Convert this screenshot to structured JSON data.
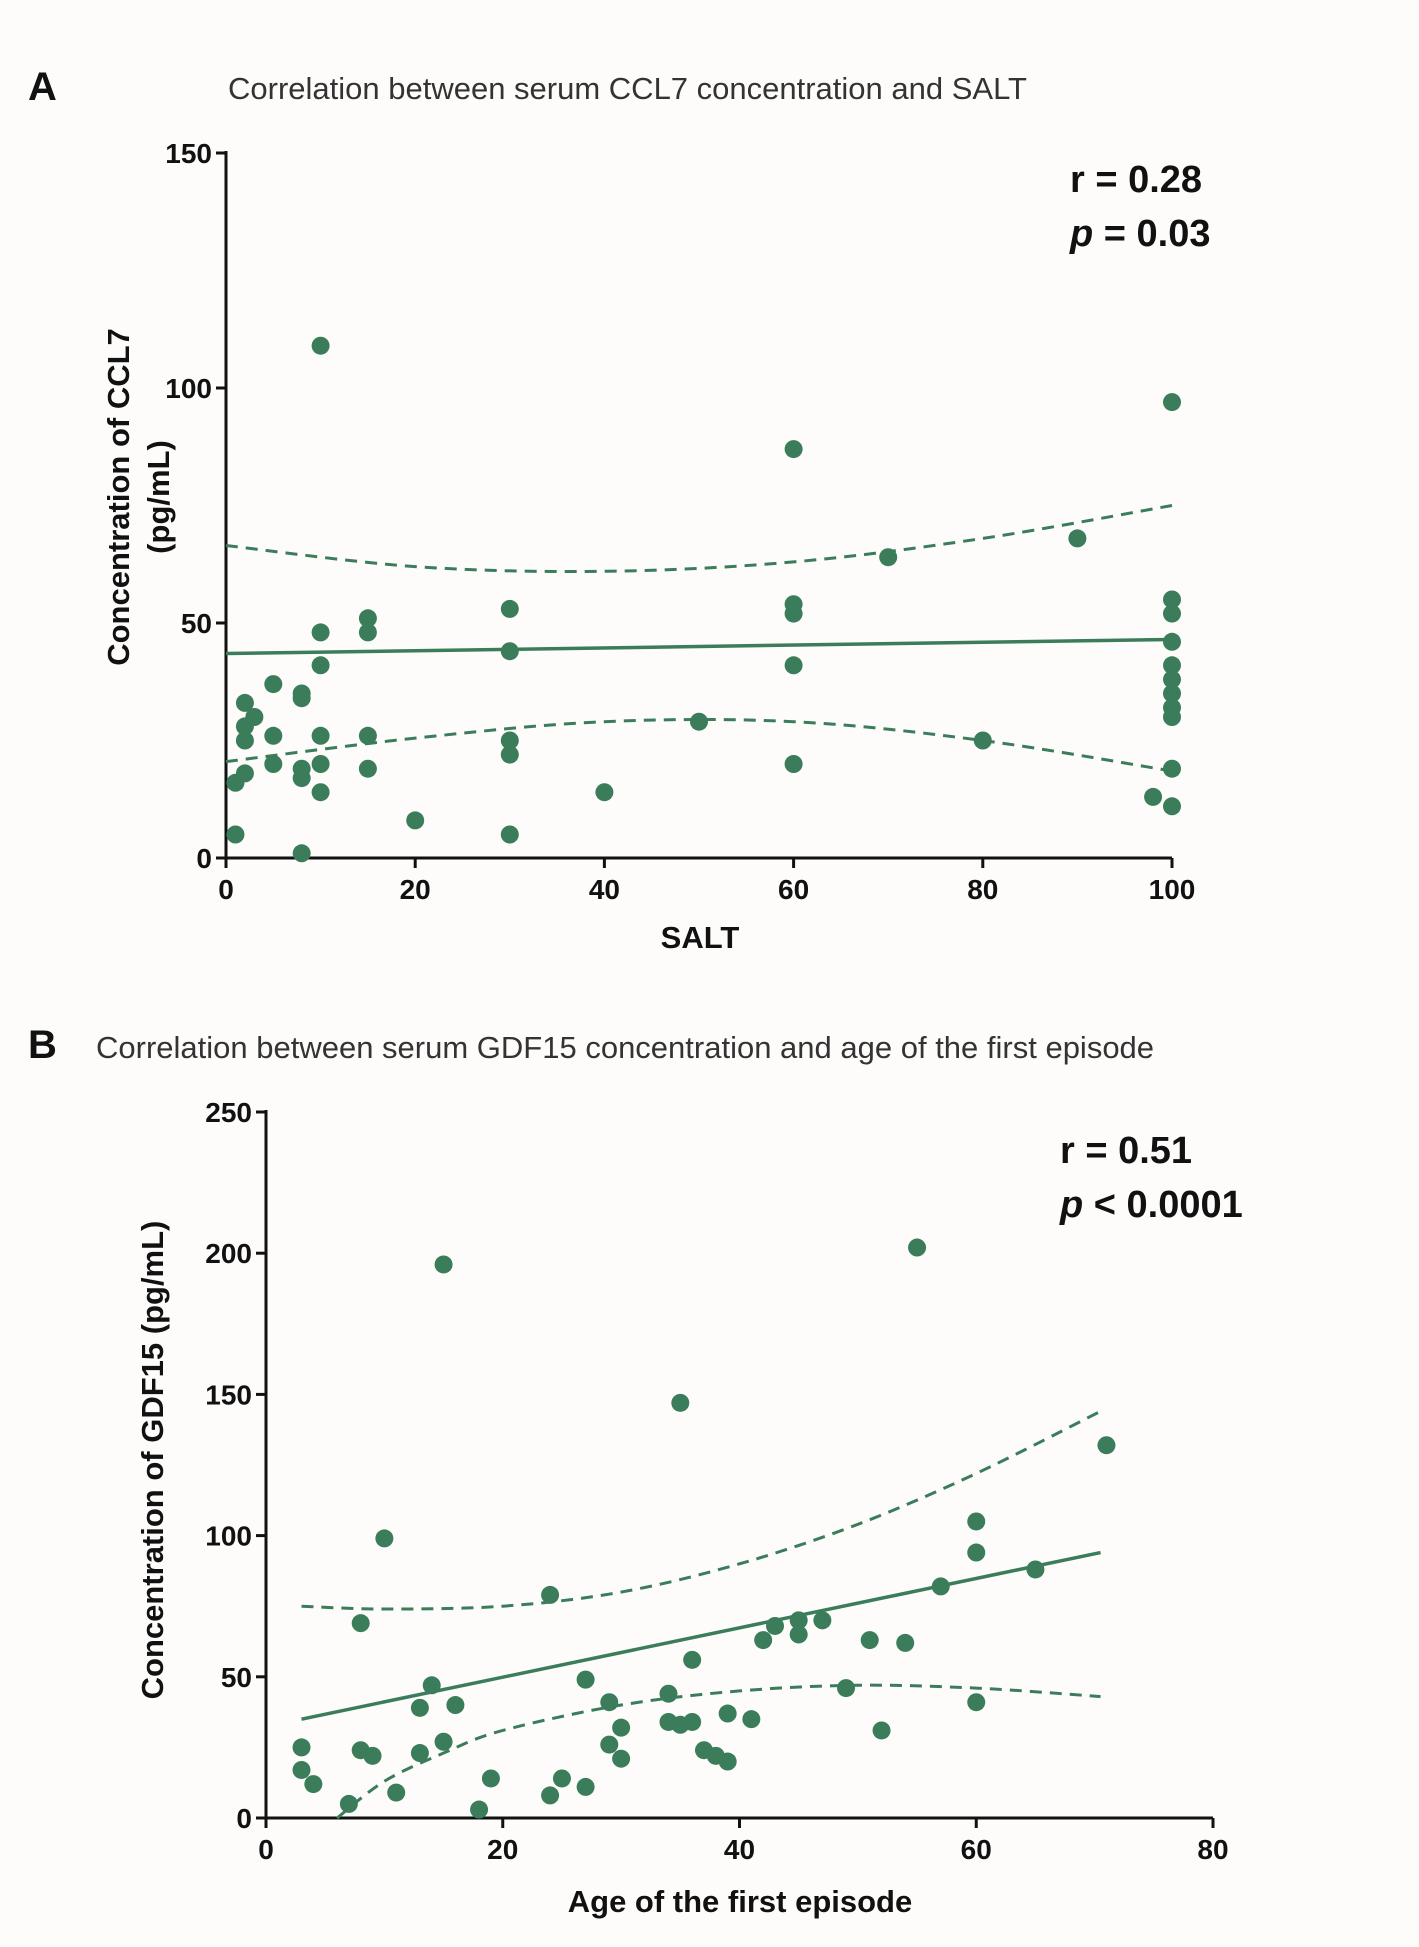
{
  "colors": {
    "point": "#3b7d5a",
    "fit": "#3b7d5a",
    "axis": "#111111",
    "background": "#fdfcfb"
  },
  "chart_data": [
    {
      "panel": "A",
      "type": "scatter",
      "title": "Correlation between serum CCL7 concentration and SALT",
      "xlabel": "SALT",
      "ylabel_lines": [
        "Concentration of CCL7",
        "(pg/mL)"
      ],
      "xlim": [
        0,
        100
      ],
      "ylim": [
        0,
        150
      ],
      "xticks": [
        0,
        20,
        40,
        60,
        80,
        100
      ],
      "yticks": [
        0,
        50,
        100,
        150
      ],
      "stats": {
        "r_text": "r = 0.28",
        "p_symbol": "p",
        "p_rest": " = 0.03"
      },
      "fit": {
        "x": [
          0,
          100
        ],
        "y": [
          43.5,
          46.5
        ]
      },
      "ci_upper": {
        "x": [
          0,
          20,
          40,
          60,
          80,
          100
        ],
        "y": [
          66.5,
          62,
          61,
          63,
          68,
          75
        ]
      },
      "ci_lower": {
        "x": [
          0,
          20,
          40,
          60,
          80,
          100
        ],
        "y": [
          20.5,
          25.5,
          29,
          29,
          25,
          18.5
        ]
      },
      "points": [
        [
          1,
          5
        ],
        [
          1,
          16
        ],
        [
          2,
          18
        ],
        [
          2,
          25
        ],
        [
          2,
          28
        ],
        [
          2,
          33
        ],
        [
          3,
          30
        ],
        [
          5,
          37
        ],
        [
          5,
          20
        ],
        [
          5,
          26
        ],
        [
          8,
          35
        ],
        [
          8,
          34
        ],
        [
          8,
          19
        ],
        [
          8,
          17
        ],
        [
          8,
          1
        ],
        [
          10,
          109
        ],
        [
          10,
          48
        ],
        [
          10,
          41
        ],
        [
          10,
          26
        ],
        [
          10,
          20
        ],
        [
          10,
          14
        ],
        [
          15,
          51
        ],
        [
          15,
          48
        ],
        [
          15,
          26
        ],
        [
          15,
          19
        ],
        [
          20,
          8
        ],
        [
          30,
          53
        ],
        [
          30,
          44
        ],
        [
          30,
          25
        ],
        [
          30,
          22
        ],
        [
          30,
          5
        ],
        [
          40,
          14
        ],
        [
          50,
          29
        ],
        [
          60,
          87
        ],
        [
          60,
          54
        ],
        [
          60,
          52
        ],
        [
          60,
          41
        ],
        [
          60,
          20
        ],
        [
          70,
          64
        ],
        [
          80,
          25
        ],
        [
          90,
          68
        ],
        [
          98,
          13
        ],
        [
          100,
          97
        ],
        [
          100,
          55
        ],
        [
          100,
          52
        ],
        [
          100,
          46
        ],
        [
          100,
          41
        ],
        [
          100,
          38
        ],
        [
          100,
          35
        ],
        [
          100,
          32
        ],
        [
          100,
          30
        ],
        [
          100,
          19
        ],
        [
          100,
          11
        ]
      ]
    },
    {
      "panel": "B",
      "type": "scatter",
      "title": "Correlation between serum GDF15 concentration and age of the first episode",
      "xlabel": "Age of the first episode",
      "ylabel_lines": [
        "Concentration of GDF15 (pg/mL)"
      ],
      "xlim": [
        0,
        80
      ],
      "ylim": [
        0,
        250
      ],
      "xticks": [
        0,
        20,
        40,
        60,
        80
      ],
      "yticks": [
        0,
        50,
        100,
        150,
        200,
        250
      ],
      "stats": {
        "r_text": "r = 0.51",
        "p_symbol": "p",
        "p_rest": " < 0.0001"
      },
      "fit": {
        "x": [
          3,
          70.5
        ],
        "y": [
          35,
          94
        ]
      },
      "ci_upper": {
        "x": [
          3,
          10,
          20,
          30,
          40,
          50,
          60,
          70.5
        ],
        "y": [
          75,
          74,
          75,
          80,
          90,
          104,
          122,
          144
        ]
      },
      "ci_lower": {
        "x": [
          6,
          10,
          15,
          20,
          30,
          40,
          50,
          60,
          70.5
        ],
        "y": [
          0,
          13,
          23,
          31,
          40,
          45,
          47,
          46,
          43
        ]
      },
      "points": [
        [
          3,
          25
        ],
        [
          3,
          17
        ],
        [
          4,
          12
        ],
        [
          7,
          5
        ],
        [
          8,
          69
        ],
        [
          8,
          24
        ],
        [
          9,
          22
        ],
        [
          10,
          99
        ],
        [
          11,
          9
        ],
        [
          13,
          39
        ],
        [
          13,
          23
        ],
        [
          14,
          47
        ],
        [
          15,
          196
        ],
        [
          15,
          27
        ],
        [
          16,
          40
        ],
        [
          18,
          3
        ],
        [
          19,
          14
        ],
        [
          24,
          79
        ],
        [
          24,
          8
        ],
        [
          25,
          14
        ],
        [
          27,
          49
        ],
        [
          27,
          11
        ],
        [
          29,
          41
        ],
        [
          29,
          26
        ],
        [
          30,
          32
        ],
        [
          30,
          21
        ],
        [
          34,
          44
        ],
        [
          34,
          34
        ],
        [
          35,
          147
        ],
        [
          35,
          33
        ],
        [
          36,
          56
        ],
        [
          36,
          34
        ],
        [
          37,
          24
        ],
        [
          38,
          22
        ],
        [
          39,
          37
        ],
        [
          39,
          20
        ],
        [
          41,
          35
        ],
        [
          42,
          63
        ],
        [
          43,
          68
        ],
        [
          45,
          70
        ],
        [
          45,
          65
        ],
        [
          47,
          70
        ],
        [
          49,
          46
        ],
        [
          51,
          63
        ],
        [
          52,
          31
        ],
        [
          54,
          62
        ],
        [
          55,
          202
        ],
        [
          57,
          82
        ],
        [
          60,
          105
        ],
        [
          60,
          94
        ],
        [
          60,
          41
        ],
        [
          65,
          88
        ],
        [
          71,
          132
        ]
      ]
    }
  ]
}
